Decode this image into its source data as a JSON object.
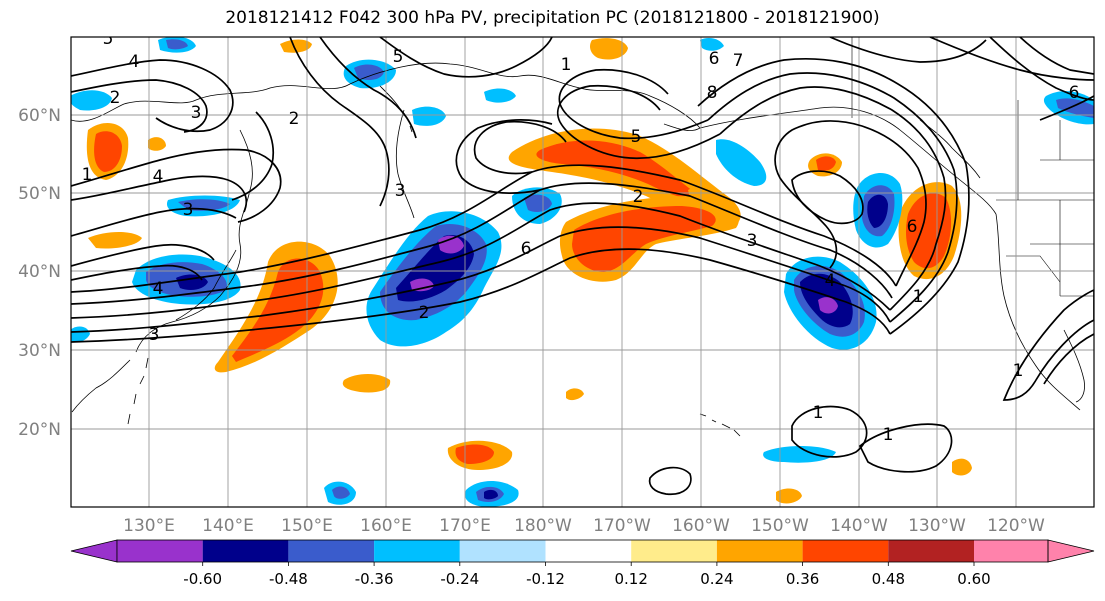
{
  "title": "2018121412 F042 300 hPa PV, precipitation PC (2018121800 - 2018121900)",
  "map": {
    "lat_labels": [
      "60°N",
      "50°N",
      "40°N",
      "30°N",
      "20°N"
    ],
    "lon_labels": [
      "130°E",
      "140°E",
      "150°E",
      "160°E",
      "170°E",
      "180°W",
      "170°W",
      "160°W",
      "150°W",
      "140°W",
      "130°W",
      "120°W"
    ],
    "contour_labels": [
      "4",
      "3",
      "2",
      "5",
      "4",
      "3",
      "1",
      "5",
      "2",
      "6",
      "4",
      "3",
      "2",
      "1",
      "5",
      "2",
      "6",
      "3",
      "4",
      "3",
      "1",
      "1",
      "1",
      "1",
      "6",
      "8",
      "7",
      "6"
    ]
  },
  "colorbar": {
    "colors": [
      "#9932cc",
      "#00008b",
      "#3a5ccc",
      "#00bfff",
      "#b0e2ff",
      "#ffffff",
      "#ffec8b",
      "#ffa500",
      "#ff4500",
      "#b22222",
      "#ff82ab"
    ],
    "tick_labels": [
      "-0.60",
      "-0.48",
      "-0.36",
      "-0.24",
      "-0.12",
      "0.12",
      "0.24",
      "0.36",
      "0.48",
      "0.60"
    ]
  }
}
